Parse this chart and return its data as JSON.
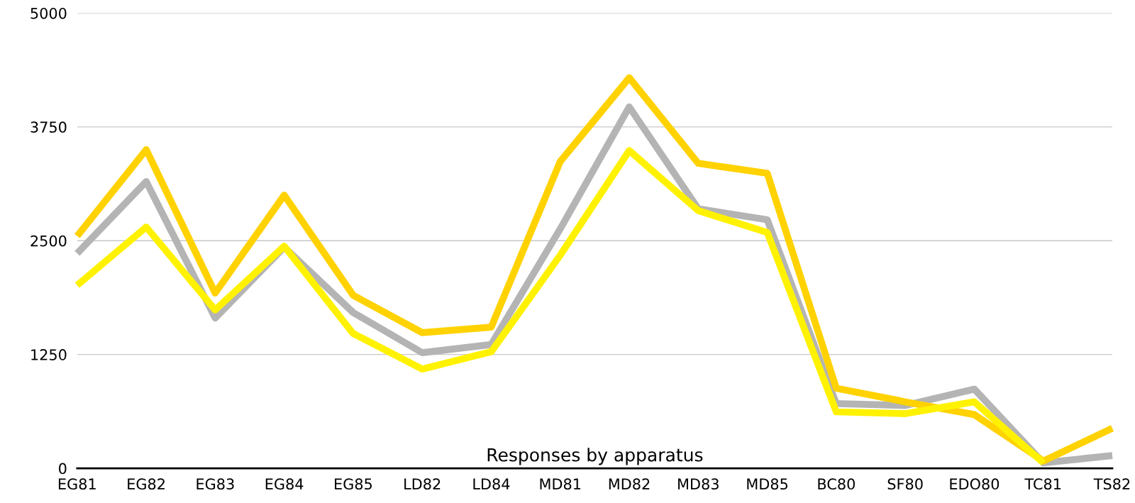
{
  "chart_data": {
    "type": "line",
    "xlabel": "Responses by apparatus",
    "categories": [
      "EG81",
      "EG82",
      "EG83",
      "EG84",
      "EG85",
      "LD82",
      "LD84",
      "MD81",
      "MD82",
      "MD83",
      "MD85",
      "BC80",
      "SF80",
      "EDO80",
      "TC81",
      "TS82"
    ],
    "series": [
      {
        "color": "#b4b4b4",
        "values": [
          2360,
          3150,
          1650,
          2430,
          1710,
          1270,
          1360,
          2630,
          3970,
          2850,
          2730,
          710,
          690,
          870,
          60,
          140
        ]
      },
      {
        "color": "#ffd200",
        "values": [
          2550,
          3500,
          1925,
          3000,
          1900,
          1490,
          1550,
          3370,
          4290,
          3350,
          3240,
          880,
          730,
          590,
          80,
          440
        ]
      },
      {
        "color": "#fff200",
        "values": [
          2010,
          2650,
          1740,
          2440,
          1480,
          1090,
          1280,
          2340,
          3490,
          2830,
          2590,
          620,
          600,
          730,
          60,
          null
        ]
      }
    ],
    "ylim": [
      0,
      5000
    ],
    "yticks": [
      0,
      1250,
      2500,
      3750,
      5000
    ],
    "grid": "y",
    "legend": false,
    "marker": "none",
    "line_style": "solid"
  }
}
